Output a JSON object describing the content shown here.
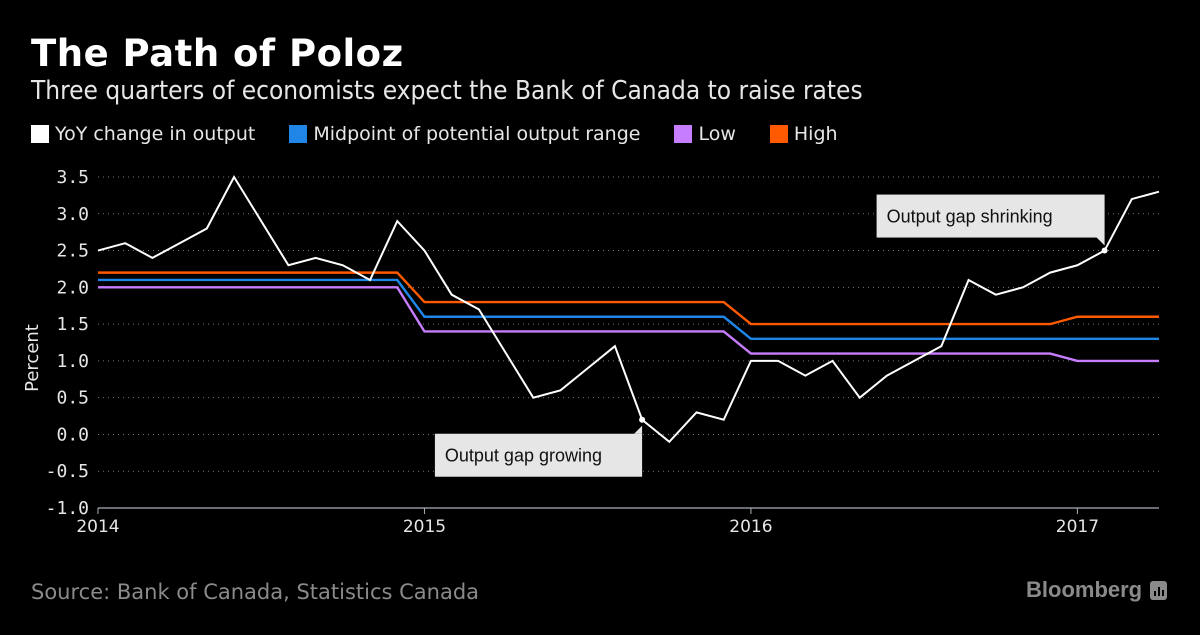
{
  "header": {
    "title": "The Path of Poloz",
    "subtitle": "Three quarters of economists expect the Bank of Canada to raise rates"
  },
  "legend": [
    {
      "label": "YoY change in output",
      "color": "#ffffff"
    },
    {
      "label": "Midpoint of potential output range",
      "color": "#1f86e8"
    },
    {
      "label": "Low",
      "color": "#c77dff"
    },
    {
      "label": "High",
      "color": "#ff5a00"
    }
  ],
  "footer": {
    "source": "Source: Bank of Canada, Statistics Canada",
    "brand": "Bloomberg"
  },
  "chart_data": {
    "type": "line",
    "title": "The Path of Poloz",
    "subtitle": "Three quarters of economists expect the Bank of Canada to raise rates",
    "xlabel": "",
    "ylabel": "Percent",
    "ylim": [
      -1.0,
      3.5
    ],
    "yticks": [
      "3.5",
      "3.0",
      "2.5",
      "2.0",
      "1.5",
      "1.0",
      "0.5",
      "0.0",
      "-0.5",
      "-1.0"
    ],
    "ytick_values": [
      3.5,
      3.0,
      2.5,
      2.0,
      1.5,
      1.0,
      0.5,
      0.0,
      -0.5,
      -1.0
    ],
    "xticks": [
      {
        "label": "2014",
        "index": 0
      },
      {
        "label": "2015",
        "index": 12
      },
      {
        "label": "2016",
        "index": 24
      },
      {
        "label": "2017",
        "index": 36
      }
    ],
    "x_range_months": [
      0,
      39
    ],
    "x_start": "2014-01",
    "x_frequency": "monthly",
    "grid": true,
    "legend_position": "top",
    "series": [
      {
        "name": "YoY change in output",
        "color": "#ffffff",
        "values": [
          2.5,
          2.6,
          2.4,
          2.6,
          2.8,
          3.5,
          2.9,
          2.3,
          2.4,
          2.3,
          2.1,
          2.9,
          2.5,
          1.9,
          1.7,
          1.1,
          0.5,
          0.6,
          0.9,
          1.2,
          0.2,
          -0.1,
          0.3,
          0.2,
          1.0,
          1.0,
          0.8,
          1.0,
          0.5,
          0.8,
          1.0,
          1.2,
          2.1,
          1.9,
          2.0,
          2.2,
          2.3,
          2.5,
          3.2,
          3.3
        ]
      },
      {
        "name": "Midpoint of potential output range",
        "color": "#1f86e8",
        "values": [
          2.1,
          2.1,
          2.1,
          2.1,
          2.1,
          2.1,
          2.1,
          2.1,
          2.1,
          2.1,
          2.1,
          2.1,
          1.6,
          1.6,
          1.6,
          1.6,
          1.6,
          1.6,
          1.6,
          1.6,
          1.6,
          1.6,
          1.6,
          1.6,
          1.3,
          1.3,
          1.3,
          1.3,
          1.3,
          1.3,
          1.3,
          1.3,
          1.3,
          1.3,
          1.3,
          1.3,
          1.3,
          1.3,
          1.3,
          1.3
        ]
      },
      {
        "name": "Low",
        "color": "#c77dff",
        "values": [
          2.0,
          2.0,
          2.0,
          2.0,
          2.0,
          2.0,
          2.0,
          2.0,
          2.0,
          2.0,
          2.0,
          2.0,
          1.4,
          1.4,
          1.4,
          1.4,
          1.4,
          1.4,
          1.4,
          1.4,
          1.4,
          1.4,
          1.4,
          1.4,
          1.1,
          1.1,
          1.1,
          1.1,
          1.1,
          1.1,
          1.1,
          1.1,
          1.1,
          1.1,
          1.1,
          1.1,
          1.0,
          1.0,
          1.0,
          1.0
        ]
      },
      {
        "name": "High",
        "color": "#ff5a00",
        "values": [
          2.2,
          2.2,
          2.2,
          2.2,
          2.2,
          2.2,
          2.2,
          2.2,
          2.2,
          2.2,
          2.2,
          2.2,
          1.8,
          1.8,
          1.8,
          1.8,
          1.8,
          1.8,
          1.8,
          1.8,
          1.8,
          1.8,
          1.8,
          1.8,
          1.5,
          1.5,
          1.5,
          1.5,
          1.5,
          1.5,
          1.5,
          1.5,
          1.5,
          1.5,
          1.5,
          1.5,
          1.6,
          1.6,
          1.6,
          1.6
        ]
      }
    ],
    "annotations": [
      {
        "text": "Output gap growing",
        "index": 20,
        "value": 0.2,
        "side": "below"
      },
      {
        "text": "Output gap shrinking",
        "index": 37,
        "value": 2.5,
        "side": "above"
      }
    ]
  }
}
